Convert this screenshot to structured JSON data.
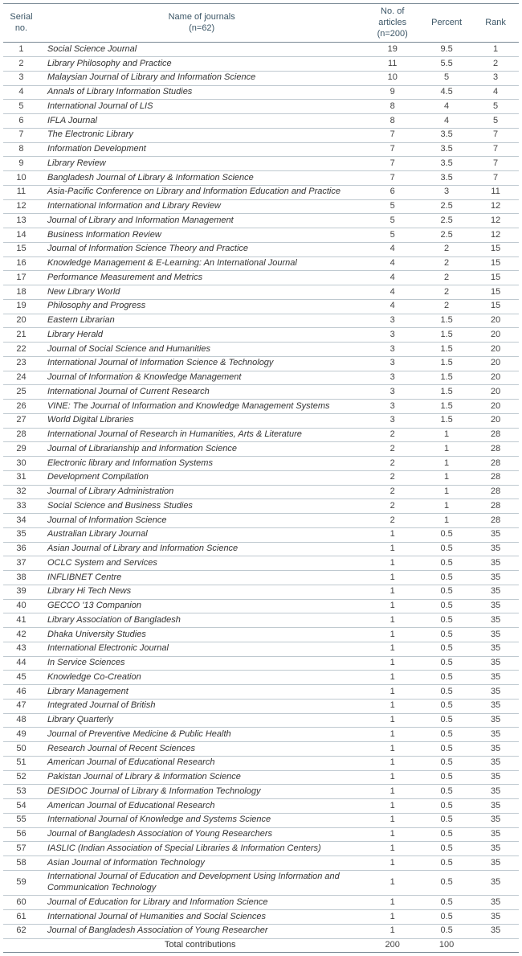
{
  "table": {
    "headers": {
      "serial": "Serial no.",
      "name_l1": "Name of journals",
      "name_l2": "(n=62)",
      "articles_l1": "No. of articles",
      "articles_l2": "(n=200)",
      "percent": "Percent",
      "rank": "Rank"
    },
    "rows": [
      {
        "sn": "1",
        "name": "Social Science Journal",
        "art": "19",
        "pct": "9.5",
        "rank": "1"
      },
      {
        "sn": "2",
        "name": "Library Philosophy and Practice",
        "art": "11",
        "pct": "5.5",
        "rank": "2"
      },
      {
        "sn": "3",
        "name": "Malaysian Journal of Library and Information Science",
        "art": "10",
        "pct": "5",
        "rank": "3"
      },
      {
        "sn": "4",
        "name": "Annals of Library Information Studies",
        "art": "9",
        "pct": "4.5",
        "rank": "4"
      },
      {
        "sn": "5",
        "name": "International Journal of LIS",
        "art": "8",
        "pct": "4",
        "rank": "5"
      },
      {
        "sn": "6",
        "name": "IFLA Journal",
        "art": "8",
        "pct": "4",
        "rank": "5"
      },
      {
        "sn": "7",
        "name": "The Electronic Library",
        "art": "7",
        "pct": "3.5",
        "rank": "7"
      },
      {
        "sn": "8",
        "name": "Information Development",
        "art": "7",
        "pct": "3.5",
        "rank": "7"
      },
      {
        "sn": "9",
        "name": "Library Review",
        "art": "7",
        "pct": "3.5",
        "rank": "7"
      },
      {
        "sn": "10",
        "name": "Bangladesh Journal of Library & Information Science",
        "art": "7",
        "pct": "3.5",
        "rank": "7"
      },
      {
        "sn": "11",
        "name": "Asia-Pacific Conference on Library and Information Education and Practice",
        "art": "6",
        "pct": "3",
        "rank": "11"
      },
      {
        "sn": "12",
        "name": "International Information and Library Review",
        "art": "5",
        "pct": "2.5",
        "rank": "12"
      },
      {
        "sn": "13",
        "name": "Journal of Library and Information Management",
        "art": "5",
        "pct": "2.5",
        "rank": "12"
      },
      {
        "sn": "14",
        "name": "Business Information Review",
        "art": "5",
        "pct": "2.5",
        "rank": "12"
      },
      {
        "sn": "15",
        "name": "Journal of Information Science Theory and Practice",
        "art": "4",
        "pct": "2",
        "rank": "15"
      },
      {
        "sn": "16",
        "name": "Knowledge Management & E-Learning: An International Journal",
        "art": "4",
        "pct": "2",
        "rank": "15"
      },
      {
        "sn": "17",
        "name": "Performance Measurement and Metrics",
        "art": "4",
        "pct": "2",
        "rank": "15"
      },
      {
        "sn": "18",
        "name": "New Library World",
        "art": "4",
        "pct": "2",
        "rank": "15"
      },
      {
        "sn": "19",
        "name": "Philosophy and Progress",
        "art": "4",
        "pct": "2",
        "rank": "15"
      },
      {
        "sn": "20",
        "name": "Eastern Librarian",
        "art": "3",
        "pct": "1.5",
        "rank": "20"
      },
      {
        "sn": "21",
        "name": "Library Herald",
        "art": "3",
        "pct": "1.5",
        "rank": "20"
      },
      {
        "sn": "22",
        "name": "Journal of Social Science and Humanities",
        "art": "3",
        "pct": "1.5",
        "rank": "20"
      },
      {
        "sn": "23",
        "name": "International Journal of Information Science & Technology",
        "art": "3",
        "pct": "1.5",
        "rank": "20"
      },
      {
        "sn": "24",
        "name": "Journal of Information & Knowledge Management",
        "art": "3",
        "pct": "1.5",
        "rank": "20"
      },
      {
        "sn": "25",
        "name": "International Journal of Current Research",
        "art": "3",
        "pct": "1.5",
        "rank": "20"
      },
      {
        "sn": "26",
        "name": "VINE: The Journal of Information and Knowledge Management Systems",
        "art": "3",
        "pct": "1.5",
        "rank": "20"
      },
      {
        "sn": "27",
        "name": "World Digital Libraries",
        "art": "3",
        "pct": "1.5",
        "rank": "20"
      },
      {
        "sn": "28",
        "name": "International Journal of Research in Humanities, Arts & Literature",
        "art": "2",
        "pct": "1",
        "rank": "28"
      },
      {
        "sn": "29",
        "name": "Journal of Librarianship and Information Science",
        "art": "2",
        "pct": "1",
        "rank": "28"
      },
      {
        "sn": "30",
        "name": "Electronic library and Information Systems",
        "art": "2",
        "pct": "1",
        "rank": "28"
      },
      {
        "sn": "31",
        "name": "Development Compilation",
        "art": "2",
        "pct": "1",
        "rank": "28"
      },
      {
        "sn": "32",
        "name": "Journal of Library Administration",
        "art": "2",
        "pct": "1",
        "rank": "28"
      },
      {
        "sn": "33",
        "name": "Social Science and Business Studies",
        "art": "2",
        "pct": "1",
        "rank": "28"
      },
      {
        "sn": "34",
        "name": "Journal of Information Science",
        "art": "2",
        "pct": "1",
        "rank": "28"
      },
      {
        "sn": "35",
        "name": "Australian Library Journal",
        "art": "1",
        "pct": "0.5",
        "rank": "35"
      },
      {
        "sn": "36",
        "name": "Asian Journal of Library and Information Science",
        "art": "1",
        "pct": "0.5",
        "rank": "35"
      },
      {
        "sn": "37",
        "name": "OCLC System and Services",
        "art": "1",
        "pct": "0.5",
        "rank": "35"
      },
      {
        "sn": "38",
        "name": "INFLIBNET Centre",
        "art": "1",
        "pct": "0.5",
        "rank": "35"
      },
      {
        "sn": "39",
        "name": "Library Hi Tech News",
        "art": "1",
        "pct": "0.5",
        "rank": "35"
      },
      {
        "sn": "40",
        "name": "GECCO '13 Companion",
        "art": "1",
        "pct": "0.5",
        "rank": "35"
      },
      {
        "sn": "41",
        "name": "Library Association of Bangladesh",
        "art": "1",
        "pct": "0.5",
        "rank": "35"
      },
      {
        "sn": "42",
        "name": "Dhaka University Studies",
        "art": "1",
        "pct": "0.5",
        "rank": "35"
      },
      {
        "sn": "43",
        "name": "International Electronic Journal",
        "art": "1",
        "pct": "0.5",
        "rank": "35"
      },
      {
        "sn": "44",
        "name": "In Service Sciences",
        "art": "1",
        "pct": "0.5",
        "rank": "35"
      },
      {
        "sn": "45",
        "name": "Knowledge Co-Creation",
        "art": "1",
        "pct": "0.5",
        "rank": "35"
      },
      {
        "sn": "46",
        "name": "Library Management",
        "art": "1",
        "pct": "0.5",
        "rank": "35"
      },
      {
        "sn": "47",
        "name": "Integrated Journal of British",
        "art": "1",
        "pct": "0.5",
        "rank": "35"
      },
      {
        "sn": "48",
        "name": "Library Quarterly",
        "art": "1",
        "pct": "0.5",
        "rank": "35"
      },
      {
        "sn": "49",
        "name": "Journal of Preventive Medicine & Public Health",
        "art": "1",
        "pct": "0.5",
        "rank": "35"
      },
      {
        "sn": "50",
        "name": "Research Journal of Recent Sciences",
        "art": "1",
        "pct": "0.5",
        "rank": "35"
      },
      {
        "sn": "51",
        "name": "American Journal of Educational Research",
        "art": "1",
        "pct": "0.5",
        "rank": "35"
      },
      {
        "sn": "52",
        "name": "Pakistan Journal of Library & Information Science",
        "art": "1",
        "pct": "0.5",
        "rank": "35"
      },
      {
        "sn": "53",
        "name": "DESIDOC Journal of Library & Information Technology",
        "art": "1",
        "pct": "0.5",
        "rank": "35"
      },
      {
        "sn": "54",
        "name": "American Journal of Educational Research",
        "art": "1",
        "pct": "0.5",
        "rank": "35"
      },
      {
        "sn": "55",
        "name": "International Journal of Knowledge and Systems Science",
        "art": "1",
        "pct": "0.5",
        "rank": "35"
      },
      {
        "sn": "56",
        "name": "Journal of Bangladesh Association of Young Researchers",
        "art": "1",
        "pct": "0.5",
        "rank": "35"
      },
      {
        "sn": "57",
        "name": "IASLIC (Indian Association of Special Libraries & Information Centers)",
        "art": "1",
        "pct": "0.5",
        "rank": "35"
      },
      {
        "sn": "58",
        "name": "Asian Journal of Information Technology",
        "art": "1",
        "pct": "0.5",
        "rank": "35"
      },
      {
        "sn": "59",
        "name": "International Journal of Education and Development Using Information and Communication Technology",
        "art": "1",
        "pct": "0.5",
        "rank": "35"
      },
      {
        "sn": "60",
        "name": "Journal of Education for Library and Information Science",
        "art": "1",
        "pct": "0.5",
        "rank": "35"
      },
      {
        "sn": "61",
        "name": "International Journal of Humanities and Social Sciences",
        "art": "1",
        "pct": "0.5",
        "rank": "35"
      },
      {
        "sn": "62",
        "name": "Journal of Bangladesh Association of Young Researcher",
        "art": "1",
        "pct": "0.5",
        "rank": "35"
      }
    ],
    "total": {
      "label": "Total contributions",
      "art": "200",
      "pct": "100",
      "rank": ""
    }
  },
  "style": {
    "header_color": "#3b5566",
    "row_border": "#bfc9d0",
    "strong_border": "#7a8a96",
    "text_color": "#333",
    "italic": true,
    "font_size_body": 11,
    "font_size_header": 11
  }
}
